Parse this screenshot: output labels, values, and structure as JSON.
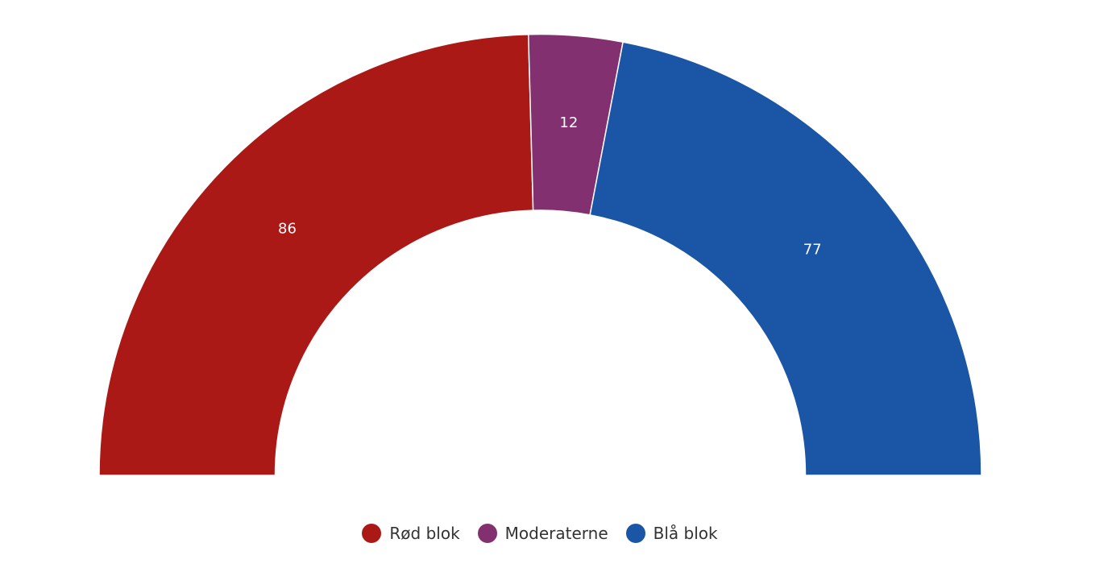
{
  "chart_data": {
    "type": "semi-donut",
    "categories": [
      "Rød blok",
      "Moderaterne",
      "Blå blok"
    ],
    "values": [
      86,
      12,
      77
    ],
    "colors": [
      "#ab1917",
      "#823070",
      "#1a56a5"
    ],
    "legend": "bottom"
  }
}
